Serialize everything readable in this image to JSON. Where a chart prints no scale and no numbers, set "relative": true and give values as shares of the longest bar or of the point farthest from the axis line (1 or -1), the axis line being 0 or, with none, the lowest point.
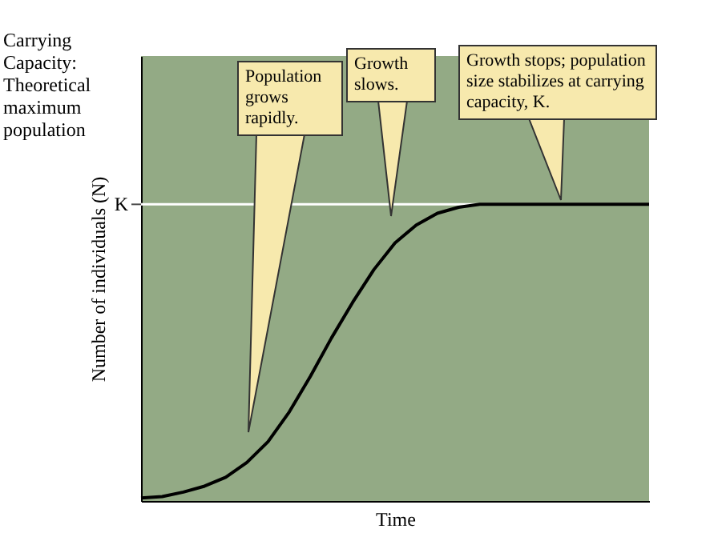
{
  "chart_data": {
    "type": "line",
    "relative": true,
    "xlabel": "Time",
    "ylabel": "Number of individuals (N)",
    "categories": [
      null,
      null,
      null,
      null,
      null,
      null,
      null,
      null,
      null,
      null,
      null,
      null,
      null,
      null,
      null,
      null,
      null,
      null,
      null,
      null,
      null,
      null,
      null,
      null,
      null
    ],
    "series": [
      {
        "color": "#000000",
        "values": [
          0.01,
          0.015,
          0.03,
          0.05,
          0.08,
          0.13,
          0.2,
          0.3,
          0.42,
          0.55,
          0.67,
          0.78,
          0.87,
          0.93,
          0.97,
          0.99,
          1,
          1,
          1,
          1,
          1,
          1,
          1,
          1,
          1
        ]
      }
    ],
    "ref_lines": [
      {
        "axis": "y",
        "value": 1,
        "label": "K",
        "color": "#ffffff"
      }
    ],
    "annotations": [
      "Carrying Capacity: Theoretical maximum population",
      "Population grows rapidly.",
      "Growth slows.",
      "Growth stops; population size stabilizes at carrying capacity, K."
    ],
    "grid": false,
    "marker": "none",
    "line_style": "solid"
  }
}
